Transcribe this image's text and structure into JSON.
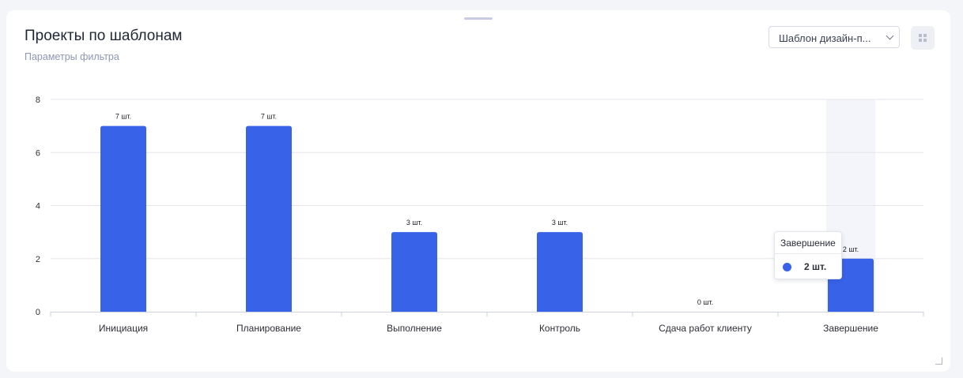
{
  "header": {
    "title": "Проекты по шаблонам",
    "subtitle": "Параметры фильтра"
  },
  "filter": {
    "selected": "Шаблон дизайн-п..."
  },
  "icons": {
    "dropdown": "chevron-down-icon",
    "layout": "grid-icon",
    "resize": "resize-handle-icon"
  },
  "colors": {
    "bar": "#3862e8",
    "highlight": "#f3f5fa"
  },
  "chart_data": {
    "type": "bar",
    "categories": [
      "Инициация",
      "Планирование",
      "Выполнение",
      "Контроль",
      "Сдача работ клиенту",
      "Завершение"
    ],
    "values": [
      7,
      7,
      3,
      3,
      0,
      2
    ],
    "data_labels": [
      "7 шт.",
      "7 шт.",
      "3 шт.",
      "3 шт.",
      "0 шт.",
      "2 шт."
    ],
    "yticks": [
      0,
      2,
      4,
      6,
      8
    ],
    "ylim": [
      0,
      8
    ],
    "grid": true,
    "title": "",
    "xlabel": "",
    "ylabel": "",
    "highlighted_category": "Завершение"
  },
  "tooltip": {
    "title": "Завершение",
    "value": "2 шт."
  }
}
